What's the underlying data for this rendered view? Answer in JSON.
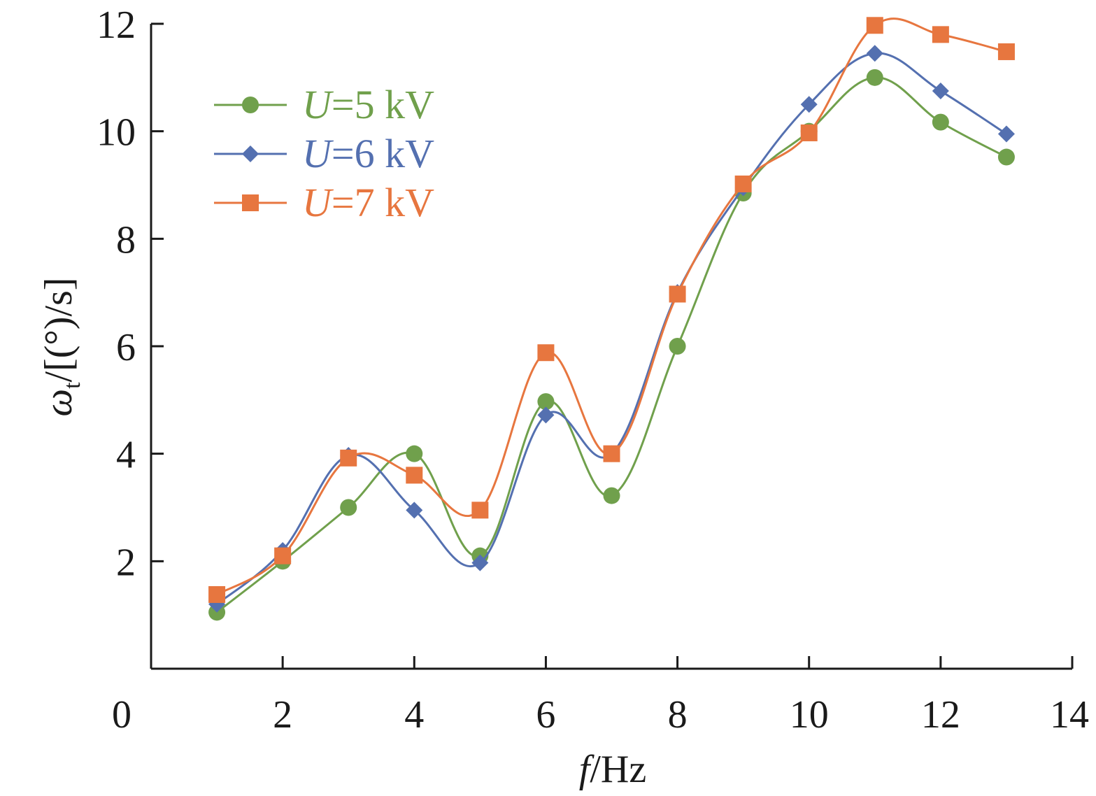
{
  "chart_data": {
    "type": "line",
    "xlabel": {
      "var": "f",
      "unit": "/Hz"
    },
    "ylabel": {
      "var": "ω",
      "sub": "t",
      "unit": "/[(°)/s]"
    },
    "xlim": [
      0,
      14
    ],
    "ylim": [
      0,
      12
    ],
    "xticks": [
      0,
      2,
      4,
      6,
      8,
      10,
      12,
      14
    ],
    "yticks": [
      2,
      4,
      6,
      8,
      10,
      12
    ],
    "grid": false,
    "legend_position": "top-left",
    "x": [
      1,
      2,
      3,
      4,
      5,
      6,
      7,
      8,
      9,
      10,
      11,
      12,
      13
    ],
    "series": [
      {
        "name": "U=5 kV",
        "name_var": "U",
        "name_rest": "=5 kV",
        "color": "#70a04c",
        "marker": "circle",
        "values": [
          1.05,
          2.0,
          3.0,
          4.0,
          2.1,
          4.97,
          3.22,
          6.0,
          8.85,
          10.0,
          11.0,
          10.17,
          9.52
        ]
      },
      {
        "name": "U=6 kV",
        "name_var": "U",
        "name_rest": "=6 kV",
        "color": "#5470b0",
        "marker": "diamond",
        "values": [
          1.2,
          2.2,
          3.97,
          2.95,
          1.97,
          4.72,
          4.0,
          7.0,
          8.95,
          10.5,
          11.45,
          10.75,
          9.95
        ]
      },
      {
        "name": "U=7 kV",
        "name_var": "U",
        "name_rest": "=7 kV",
        "color": "#e7763f",
        "marker": "square",
        "values": [
          1.38,
          2.1,
          3.92,
          3.6,
          2.95,
          5.88,
          4.0,
          6.97,
          9.02,
          9.97,
          11.97,
          11.8,
          11.48
        ]
      }
    ]
  }
}
